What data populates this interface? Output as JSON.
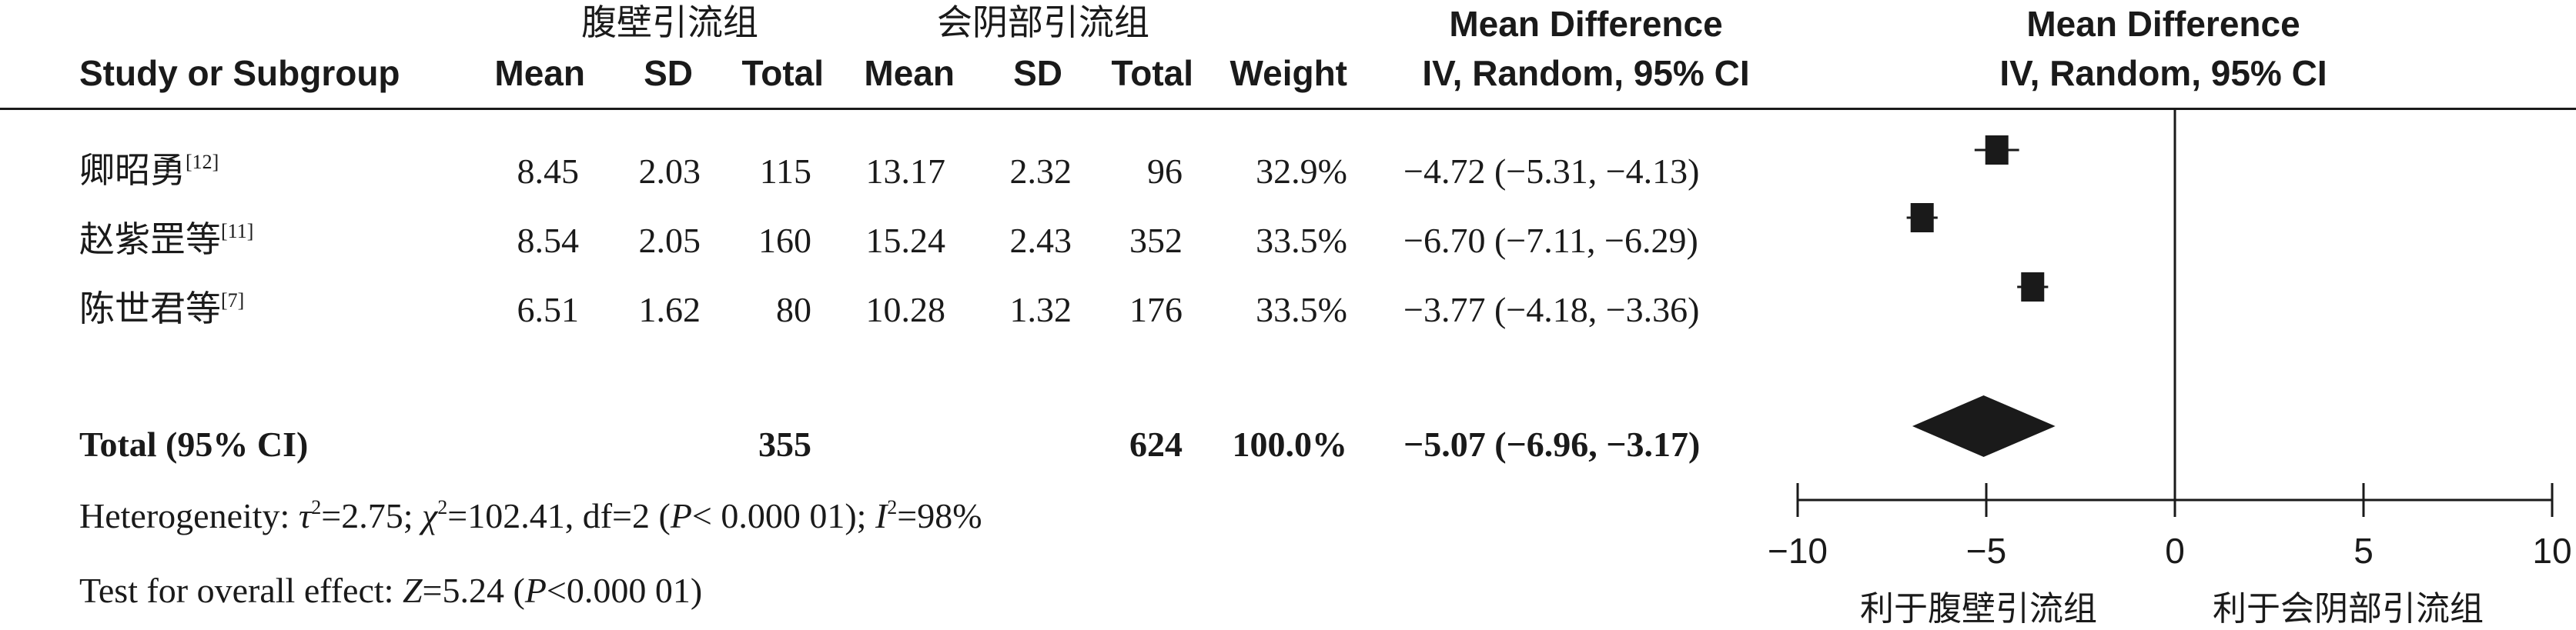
{
  "header": {
    "group1_title": "腹壁引流组",
    "group2_title": "会阴部引流组",
    "study_col": "Study or Subgroup",
    "mean": "Mean",
    "sd": "SD",
    "total": "Total",
    "weight": "Weight",
    "md_title": "Mean Difference",
    "md_method": "IV, Random, 95% CI",
    "plot_title": "Mean Difference",
    "plot_method": "IV, Random, 95% CI"
  },
  "studies": [
    {
      "name": "卿昭勇",
      "ref": "[12]",
      "mean1": "8.45",
      "sd1": "2.03",
      "total1": "115",
      "mean2": "13.17",
      "sd2": "2.32",
      "total2": "96",
      "weight": "32.9%",
      "ci_text": "−4.72 (−5.31, −4.13)"
    },
    {
      "name": "赵紫罡等",
      "ref": "[11]",
      "mean1": "8.54",
      "sd1": "2.05",
      "total1": "160",
      "mean2": "15.24",
      "sd2": "2.43",
      "total2": "352",
      "weight": "33.5%",
      "ci_text": "−6.70 (−7.11, −6.29)"
    },
    {
      "name": "陈世君等",
      "ref": "[7]",
      "mean1": "6.51",
      "sd1": "1.62",
      "total1": "80",
      "mean2": "10.28",
      "sd2": "1.32",
      "total2": "176",
      "weight": "33.5%",
      "ci_text": "−3.77 (−4.18, −3.36)"
    }
  ],
  "total_row": {
    "label": "Total (95% CI)",
    "total1": "355",
    "total2": "624",
    "weight": "100.0%",
    "ci_text": "−5.07 (−6.96, −3.17)"
  },
  "heterogeneity": {
    "prefix": "Heterogeneity: ",
    "tau": "τ",
    "tau_sup": "2",
    "tau_val": "=2.75; ",
    "chi": "χ",
    "chi_sup": "2",
    "chi_val": "=102.41, df=2 (",
    "p": "P",
    "p_val": "< 0.000 01); ",
    "i": "I",
    "i_sup": "2",
    "i_val": "=98%"
  },
  "overall": {
    "prefix": "Test for overall effect: ",
    "z": "Z",
    "z_val": "=5.24 (",
    "p": "P",
    "p_val": "<0.000 01)"
  },
  "axis": {
    "left_label": "利于腹壁引流组",
    "right_label": "利于会阴部引流组"
  },
  "chart_data": {
    "type": "forest",
    "x_min": -10,
    "x_max": 10,
    "ticks": [
      -10,
      -5,
      0,
      5,
      10
    ],
    "tick_labels": [
      "−10",
      "−5",
      "0",
      "5",
      "10"
    ],
    "studies": [
      {
        "name": "卿昭勇",
        "md": -4.72,
        "lower": -5.31,
        "upper": -4.13,
        "weight": 32.9
      },
      {
        "name": "赵紫罡等",
        "md": -6.7,
        "lower": -7.11,
        "upper": -6.29,
        "weight": 33.5
      },
      {
        "name": "陈世君等",
        "md": -3.77,
        "lower": -4.18,
        "upper": -3.36,
        "weight": 33.5
      }
    ],
    "overall": {
      "md": -5.07,
      "lower": -6.96,
      "upper": -3.17
    }
  }
}
